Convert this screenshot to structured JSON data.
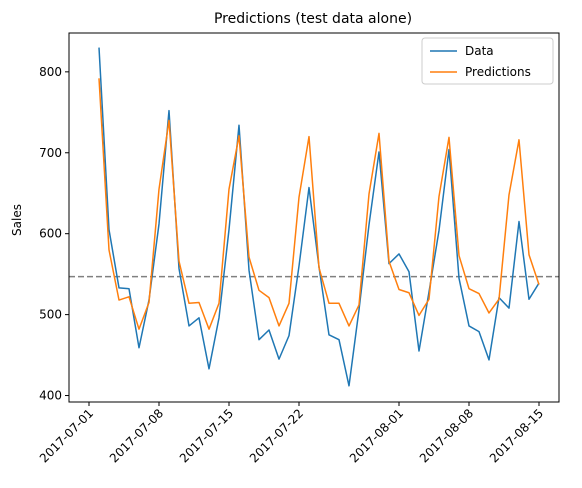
{
  "chart_data": {
    "type": "line",
    "title": "Predictions (test data alone)",
    "xlabel": "",
    "ylabel": "Sales",
    "x_start": "2017-07-02",
    "x_end": "2017-08-15",
    "xlim": [
      "2017-06-29",
      "2017-08-17"
    ],
    "ylim": [
      392,
      848
    ],
    "xticks": [
      "2017-07-01",
      "2017-07-08",
      "2017-07-15",
      "2017-07-22",
      "2017-08-01",
      "2017-08-08",
      "2017-08-15"
    ],
    "yticks": [
      400,
      500,
      600,
      700,
      800
    ],
    "grid": false,
    "legend": "upper right",
    "reference_line": {
      "y": 547,
      "style": "dashed",
      "color": "#808080"
    },
    "series": [
      {
        "name": "Data",
        "color": "#1f77b4",
        "values": [
          830,
          605,
          533,
          532,
          459,
          518,
          612,
          752,
          557,
          486,
          496,
          433,
          496,
          605,
          734,
          555,
          469,
          481,
          445,
          474,
          560,
          657,
          559,
          475,
          469,
          412,
          506,
          611,
          701,
          563,
          575,
          553,
          455,
          528,
          604,
          704,
          545,
          486,
          479,
          444,
          521,
          508,
          615,
          519,
          539
        ]
      },
      {
        "name": "Predictions",
        "color": "#ff7f0e",
        "values": [
          792,
          580,
          518,
          522,
          482,
          515,
          655,
          740,
          566,
          514,
          515,
          482,
          514,
          655,
          721,
          571,
          530,
          521,
          486,
          514,
          645,
          720,
          558,
          514,
          514,
          486,
          512,
          649,
          724,
          566,
          531,
          527,
          499,
          519,
          646,
          719,
          573,
          532,
          526,
          502,
          519,
          648,
          716,
          574,
          537
        ]
      }
    ]
  }
}
